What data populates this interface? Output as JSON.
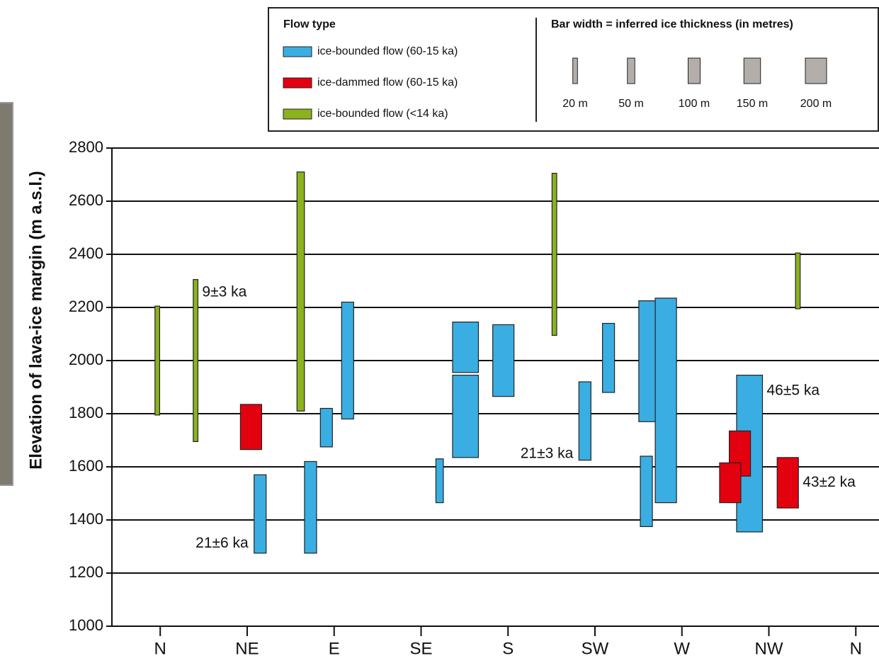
{
  "chart_data": {
    "type": "range-bar",
    "y_label": "Elevation of lava-ice margin (m a.s.l.)",
    "ylim": [
      1000,
      2800
    ],
    "yticks": [
      1000,
      1200,
      1400,
      1600,
      1800,
      2000,
      2200,
      2400,
      2600,
      2800
    ],
    "xlim": [
      -25,
      372
    ],
    "xticks": [
      {
        "value": 0,
        "label": "N"
      },
      {
        "value": 45,
        "label": "NE"
      },
      {
        "value": 90,
        "label": "E"
      },
      {
        "value": 135,
        "label": "SE"
      },
      {
        "value": 180,
        "label": "S"
      },
      {
        "value": 225,
        "label": "SW"
      },
      {
        "value": 270,
        "label": "W"
      },
      {
        "value": 315,
        "label": "NW"
      },
      {
        "value": 360,
        "label": "N"
      }
    ],
    "grid": true,
    "legend_title": "Flow type",
    "width_legend": {
      "title": "Bar width = inferred ice thickness (in metres)",
      "ticks": [
        {
          "value": 20,
          "label": "20 m"
        },
        {
          "value": 50,
          "label": "50 m"
        },
        {
          "value": 100,
          "label": "100 m"
        },
        {
          "value": 150,
          "label": "150 m"
        },
        {
          "value": 200,
          "label": "200 m"
        }
      ]
    },
    "series": [
      {
        "name": "ice-bounded flow (60-15 ka)",
        "color": "#3aaee2",
        "x": [
          86,
          97,
          51.7,
          77.8,
          144.6,
          158,
          158,
          177.6,
          219.8,
          232,
          252,
          251.6,
          261.7,
          305
        ],
        "low": [
          1675,
          1780,
          1275,
          1275,
          1465,
          1955,
          1635,
          1865,
          1625,
          1880,
          1770,
          1375,
          1465,
          1355
        ],
        "high": [
          1820,
          2220,
          1570,
          1620,
          1630,
          2145,
          1945,
          2135,
          1920,
          2140,
          2225,
          1640,
          2235,
          1945
        ],
        "thickness": [
          100,
          100,
          100,
          100,
          50,
          250,
          250,
          200,
          100,
          100,
          150,
          100,
          200,
          250
        ],
        "labels": [
          null,
          null,
          "21±6 ka",
          null,
          null,
          null,
          null,
          null,
          "21±3 ka",
          null,
          null,
          null,
          null,
          "46±5 ka"
        ]
      },
      {
        "name": "ice-dammed flow (60-15 ka)",
        "color": "#e3000f",
        "x": [
          47,
          300,
          295,
          324.8
        ],
        "low": [
          1665,
          1565,
          1465,
          1445
        ],
        "high": [
          1835,
          1735,
          1615,
          1635
        ],
        "thickness": [
          200,
          200,
          200,
          200
        ],
        "labels": [
          null,
          null,
          null,
          "43±2 ka"
        ]
      },
      {
        "name": "ice-bounded flow (<14 ka)",
        "color": "#8cb21e",
        "x": [
          -1.5,
          18.3,
          72.7,
          204,
          330
        ],
        "low": [
          1795,
          1695,
          1810,
          2095,
          2195
        ],
        "high": [
          2205,
          2305,
          2710,
          2705,
          2405
        ],
        "thickness": [
          20,
          20,
          50,
          20,
          20
        ],
        "labels": [
          null,
          "9±3 ka",
          null,
          null,
          null
        ]
      }
    ]
  }
}
